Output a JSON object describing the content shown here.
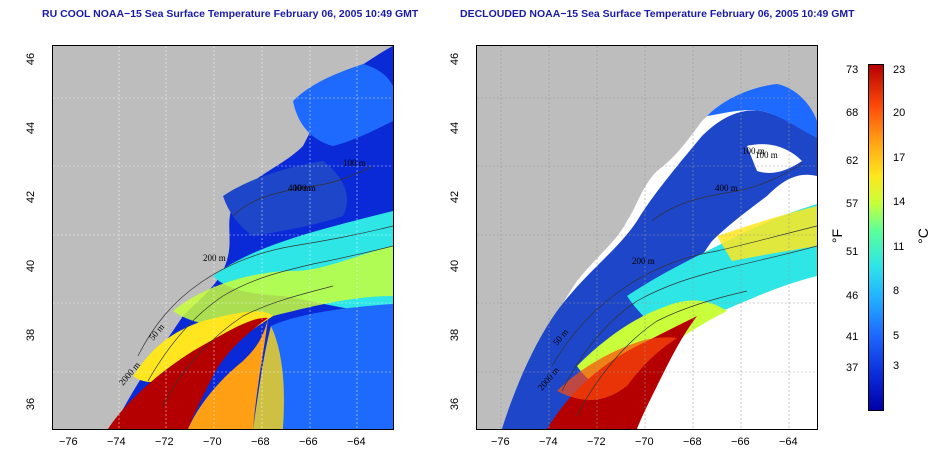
{
  "left_title": "RU COOL NOAA−15 Sea Surface Temperature February 06, 2005 10:49 GMT",
  "right_title": "DECLOUDED NOAA−15 Sea Surface Temperature February 06, 2005 10:49 GMT",
  "lat_ticks": [
    "36",
    "38",
    "40",
    "42",
    "44",
    "46"
  ],
  "lon_ticks": [
    "−76",
    "−74",
    "−72",
    "−70",
    "−68",
    "−66",
    "−64"
  ],
  "left_contours": [
    "50 m",
    "100 m",
    "200 m",
    "2000 m",
    "400 m",
    "100 m"
  ],
  "right_contours": [
    "50 m",
    "100 m",
    "200 m",
    "2000 m",
    "400 m",
    "100 m"
  ],
  "colorbar": {
    "fahrenheit_ticks": [
      "73",
      "68",
      "62",
      "57",
      "51",
      "46",
      "41",
      "37"
    ],
    "celsius_ticks": [
      "23",
      "20",
      "17",
      "14",
      "11",
      "8",
      "5",
      "3"
    ],
    "fahrenheit_unit": "°F",
    "celsius_unit": "°C"
  },
  "colors": {
    "land": "#bdbdbd",
    "cold": "#0a2ad8",
    "warm": "#b40000",
    "title": "#1a1aa8"
  }
}
